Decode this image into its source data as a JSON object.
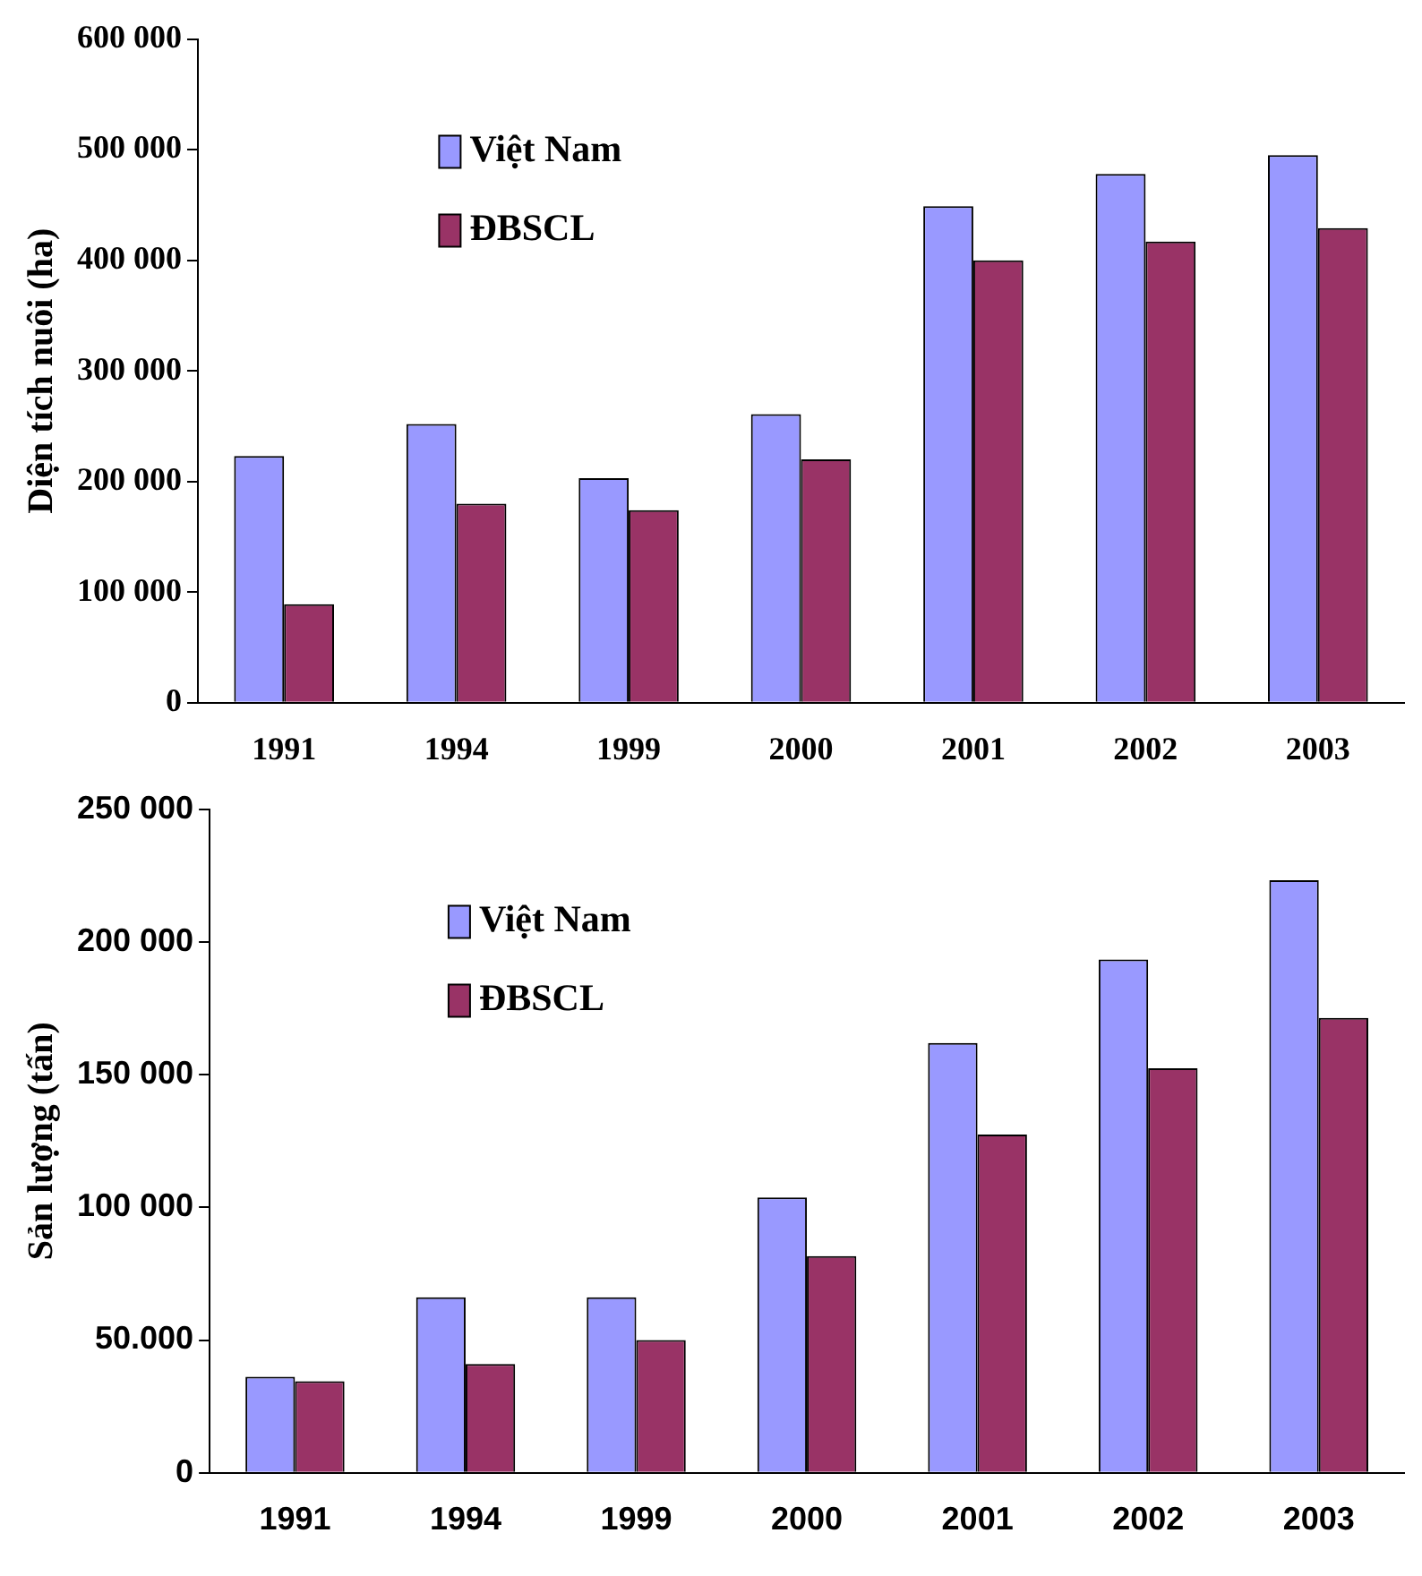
{
  "chart_data": [
    {
      "type": "bar",
      "ylabel": "Diện tích nuôi (ha)",
      "categories": [
        "1991",
        "1994",
        "1999",
        "2000",
        "2001",
        "2002",
        "2003"
      ],
      "series": [
        {
          "name": "Việt Nam",
          "color": "#9999ff",
          "values": [
            223000,
            252000,
            203000,
            261000,
            449000,
            478000,
            495000
          ]
        },
        {
          "name": "ĐBSCL",
          "color": "#993366",
          "values": [
            89000,
            180000,
            174000,
            220000,
            400000,
            417000,
            429000
          ]
        }
      ],
      "ylim": [
        0,
        600000
      ],
      "yticks": [
        {
          "value": 0,
          "label": "0"
        },
        {
          "value": 100000,
          "label": "100 000"
        },
        {
          "value": 200000,
          "label": "200 000"
        },
        {
          "value": 300000,
          "label": "300 000"
        },
        {
          "value": 400000,
          "label": "400 000"
        },
        {
          "value": 500000,
          "label": "500 000"
        },
        {
          "value": 600000,
          "label": "600 000"
        }
      ],
      "grid": false,
      "legend": "top left"
    },
    {
      "type": "bar",
      "ylabel": "Sản lượng (tấn)",
      "categories": [
        "1991",
        "1994",
        "1999",
        "2000",
        "2001",
        "2002",
        "2003"
      ],
      "series": [
        {
          "name": "Việt Nam",
          "color": "#9999ff",
          "values": [
            36200,
            66100,
            66100,
            103700,
            161900,
            193400,
            223200
          ]
        },
        {
          "name": "ĐBSCL",
          "color": "#993366",
          "values": [
            34500,
            41000,
            50000,
            81600,
            127400,
            152400,
            171400
          ]
        }
      ],
      "ylim": [
        0,
        250000
      ],
      "yticks": [
        {
          "value": 0,
          "label": "0"
        },
        {
          "value": 50000,
          "label": "50.000"
        },
        {
          "value": 100000,
          "label": "100 000"
        },
        {
          "value": 150000,
          "label": "150 000"
        },
        {
          "value": 200000,
          "label": "200 000"
        },
        {
          "value": 250000,
          "label": "250 000"
        }
      ],
      "grid": false,
      "legend": "top left"
    }
  ]
}
